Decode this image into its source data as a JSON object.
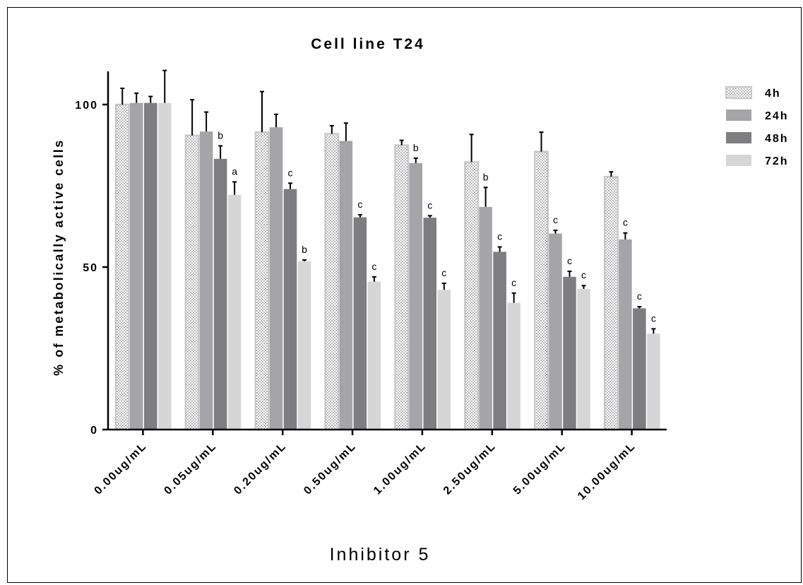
{
  "chart_data": {
    "type": "bar",
    "title": "Cell line T24",
    "xlabel": "Inhibitor 5",
    "ylabel": "% of metabolically active cells",
    "categories": [
      "0.00ug/mL",
      "0.05ug/mL",
      "0.20ug/mL",
      "0.50ug/mL",
      "1.00ug/mL",
      "2.50ug/mL",
      "5.00ug/mL",
      "10.00ug/mL"
    ],
    "ylim": [
      0,
      100
    ],
    "yticks": [
      0,
      50,
      100
    ],
    "series": [
      {
        "name": "4h",
        "pattern": "dots",
        "fill": "#ffffff",
        "stroke": "#c8c8c8",
        "values": [
          100,
          90.5,
          91.5,
          91,
          87.5,
          82.3,
          85.5,
          77.8
        ],
        "errors": [
          5,
          11,
          12.5,
          2.5,
          1.5,
          8.5,
          6,
          1.5
        ],
        "annotations": [
          "",
          "",
          "",
          "",
          "",
          "",
          "",
          ""
        ]
      },
      {
        "name": "24h",
        "fill": "#a5a5a8",
        "values": [
          100.5,
          91.7,
          93,
          88.8,
          82,
          68.5,
          60.3,
          58.5
        ],
        "errors": [
          3,
          6,
          4,
          5.5,
          1.5,
          6,
          1,
          2
        ],
        "annotations": [
          "",
          "",
          "",
          "",
          "b",
          "b",
          "c",
          "c"
        ]
      },
      {
        "name": "48h",
        "fill": "#7e7e81",
        "values": [
          100.5,
          83.3,
          74,
          65.3,
          65.2,
          54.7,
          47,
          37.3
        ],
        "errors": [
          2,
          4,
          1.8,
          0.8,
          0.6,
          1.5,
          1.7,
          0.5
        ],
        "annotations": [
          "",
          "b",
          "c",
          "c",
          "c",
          "c",
          "c",
          "c"
        ]
      },
      {
        "name": "72h",
        "fill": "#d6d6d6",
        "values": [
          100.5,
          72.2,
          51.8,
          45.5,
          43,
          39,
          43.3,
          29.5
        ],
        "errors": [
          10,
          4,
          0.4,
          1.5,
          2,
          3,
          1,
          1.5
        ],
        "annotations": [
          "",
          "a",
          "b",
          "c",
          "c",
          "c",
          "c",
          "c"
        ]
      }
    ],
    "legend_position": "right",
    "grid": false
  }
}
